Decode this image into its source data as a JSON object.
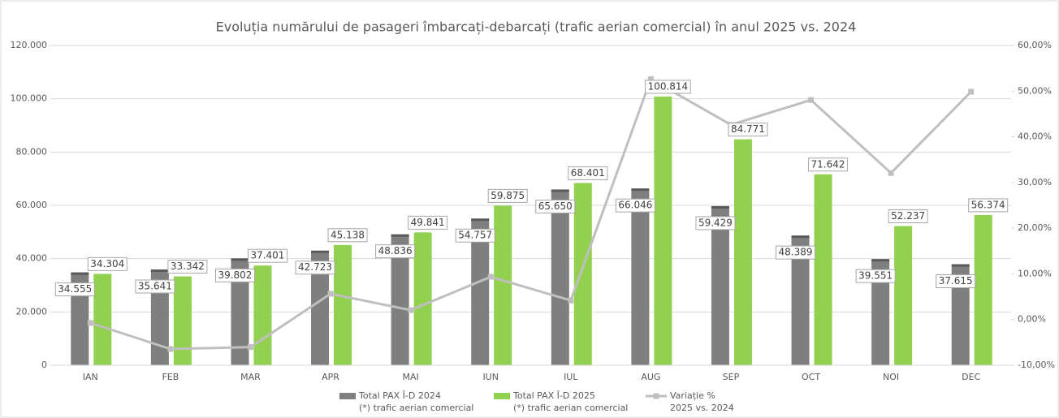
{
  "chart_data": {
    "type": "bar_line",
    "title": "Evoluția numărului de pasageri îmbarcați-debarcați (trafic aerian comercial) în anul 2025 vs. 2024",
    "categories": [
      "IAN",
      "FEB",
      "MAR",
      "APR",
      "MAI",
      "IUN",
      "IUL",
      "AUG",
      "SEP",
      "OCT",
      "NOI",
      "DEC"
    ],
    "series": [
      {
        "name": "Total PAX Î-D 2024",
        "legend_note": "(*) trafic aerian comercial",
        "color": "#7f7f7f",
        "type": "bar",
        "values": [
          34555,
          35641,
          39802,
          42723,
          48836,
          54757,
          65650,
          66046,
          59429,
          48389,
          39551,
          37615
        ],
        "value_labels": [
          "34.555",
          "35.641",
          "39.802",
          "42.723",
          "48.836",
          "54.757",
          "65.650",
          "66.046",
          "59.429",
          "48.389",
          "39.551",
          "37.615"
        ]
      },
      {
        "name": "Total PAX Î-D 2025",
        "legend_note": "(*) trafic aerian comercial",
        "color": "#92d050",
        "type": "bar",
        "values": [
          34304,
          33342,
          37401,
          45138,
          49841,
          59875,
          68401,
          100814,
          84771,
          71642,
          52237,
          56374
        ],
        "value_labels": [
          "34.304",
          "33.342",
          "37.401",
          "45.138",
          "49.841",
          "59.875",
          "68.401",
          "100.814",
          "84.771",
          "71.642",
          "52.237",
          "56.374"
        ]
      },
      {
        "name": "Variație %",
        "legend_note": "2025 vs. 2024",
        "color": "#bfbfbf",
        "type": "line",
        "axis": "y2",
        "values": [
          -0.73,
          -6.45,
          -6.03,
          5.65,
          2.06,
          9.35,
          4.19,
          52.64,
          42.64,
          48.06,
          32.07,
          49.87
        ]
      }
    ],
    "ylim": [
      0,
      120000
    ],
    "yticks": [
      0,
      {
        "value": 20000,
        "label": "20.000"
      },
      {
        "value": 40000,
        "label": "40.000"
      },
      {
        "value": 60000,
        "label": "60.000"
      },
      {
        "value": 80000,
        "label": "80.000"
      },
      {
        "value": 100000,
        "label": "100.000"
      },
      {
        "value": 120000,
        "label": "120.000"
      }
    ],
    "y2lim": [
      -10,
      60
    ],
    "y2ticks": [
      {
        "value": -10,
        "label": "-10,00%"
      },
      {
        "value": 0,
        "label": "0,00%"
      },
      {
        "value": 10,
        "label": "10,00%"
      },
      {
        "value": 20,
        "label": "20,00%"
      },
      {
        "value": 30,
        "label": "30,00%"
      },
      {
        "value": 40,
        "label": "40,00%"
      },
      {
        "value": 50,
        "label": "50,00%"
      },
      {
        "value": 60,
        "label": "60,00%"
      }
    ],
    "grid": true,
    "legend": "bottom"
  }
}
